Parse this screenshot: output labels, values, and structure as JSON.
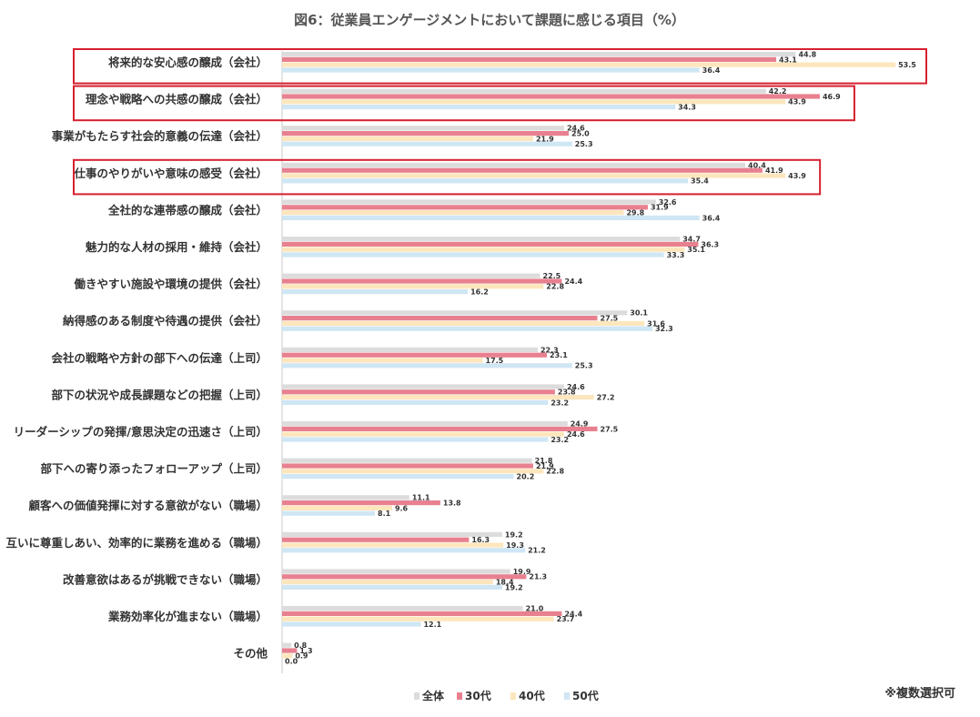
{
  "chart_data": {
    "type": "bar",
    "orientation": "horizontal",
    "title": "図6：従業員エンゲージメントにおいて課題に感じる項目（%）",
    "note": "※複数選択可",
    "legend_position": "bottom",
    "xlim": [
      0,
      60
    ],
    "grid": false,
    "categories": [
      "将来的な安心感の醸成（会社）",
      "理念や戦略への共感の醸成（会社）",
      "事業がもたらす社会的意義の伝達（会社）",
      "仕事のやりがいや意味の感受（会社）",
      "全社的な連帯感の醸成（会社）",
      "魅力的な人材の採用・維持（会社）",
      "働きやすい施設や環境の提供（会社）",
      "納得感のある制度や待遇の提供（会社）",
      "会社の戦略や方針の部下への伝達（上司）",
      "部下の状況や成長課題などの把握（上司）",
      "リーダーシップの発揮/意思決定の迅速さ（上司）",
      "部下への寄り添ったフォローアップ（上司）",
      "顧客への価値発揮に対する意欲がない（職場）",
      "互いに尊重しあい、効率的に業務を進める（職場）",
      "改善意欲はあるが挑戦できない（職場）",
      "業務効率化が進まない（職場）",
      "その他"
    ],
    "highlighted": [
      0,
      1,
      3
    ],
    "series": [
      {
        "name": "全体",
        "color": "#dcdcdc",
        "values": [
          44.8,
          42.2,
          24.6,
          40.4,
          32.6,
          34.7,
          22.5,
          30.1,
          22.3,
          24.6,
          24.9,
          21.8,
          11.1,
          19.2,
          19.9,
          21.0,
          0.8
        ]
      },
      {
        "name": "30代",
        "color": "#e8808f",
        "values": [
          43.1,
          46.9,
          25.0,
          41.9,
          31.9,
          36.3,
          24.4,
          27.5,
          23.1,
          23.8,
          27.5,
          21.9,
          13.8,
          16.3,
          21.3,
          24.4,
          1.3
        ]
      },
      {
        "name": "40代",
        "color": "#fde6bd",
        "values": [
          53.5,
          43.9,
          21.9,
          43.9,
          29.8,
          35.1,
          22.8,
          31.6,
          17.5,
          27.2,
          24.6,
          22.8,
          9.6,
          19.3,
          18.4,
          23.7,
          0.9
        ]
      },
      {
        "name": "50代",
        "color": "#cfe6f4",
        "values": [
          36.4,
          34.3,
          25.3,
          35.4,
          36.4,
          33.3,
          16.2,
          32.3,
          25.3,
          23.2,
          23.2,
          20.2,
          8.1,
          21.2,
          19.2,
          12.1,
          0.0
        ]
      }
    ],
    "highlight_color": "#d6202f"
  }
}
